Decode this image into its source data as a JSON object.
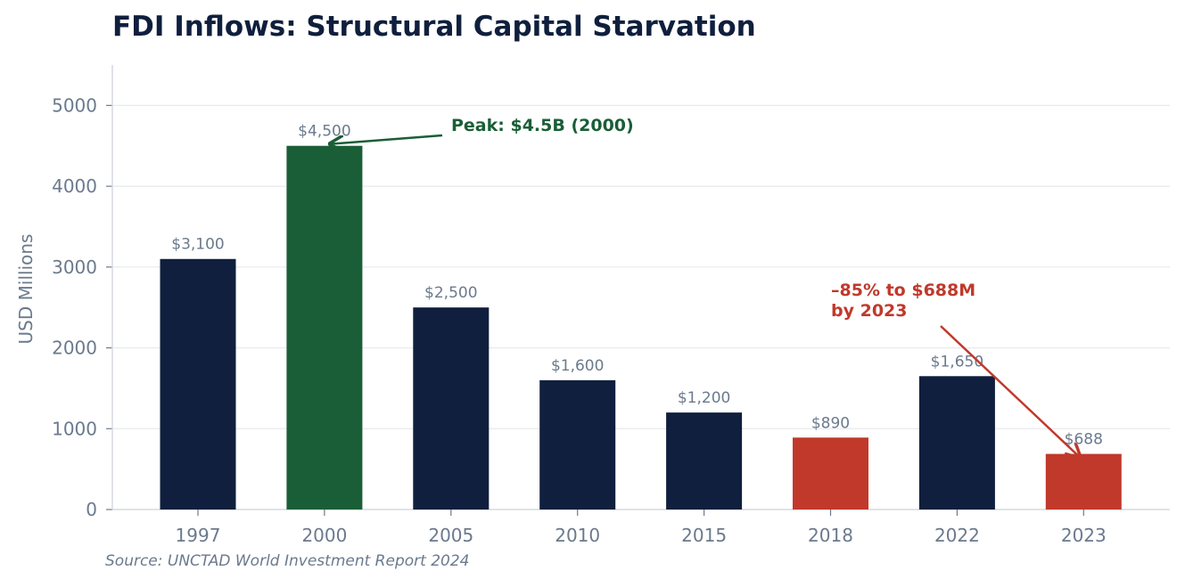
{
  "chart_data": {
    "type": "bar",
    "title": "FDI Inflows: Structural Capital Starvation",
    "ylabel": "USD Millions",
    "xlabel": "",
    "categories": [
      "1997",
      "2000",
      "2005",
      "2010",
      "2015",
      "2018",
      "2022",
      "2023"
    ],
    "values": [
      3100,
      4500,
      2500,
      1600,
      1200,
      890,
      1650,
      688
    ],
    "value_labels": [
      "$3,100",
      "$4,500",
      "$2,500",
      "$1,600",
      "$1,200",
      "$890",
      "$1,650",
      "$688"
    ],
    "bar_colors": [
      "#0f1f3d",
      "#1a5e37",
      "#0f1f3d",
      "#0f1f3d",
      "#0f1f3d",
      "#c0392b",
      "#0f1f3d",
      "#c0392b"
    ],
    "ylim": [
      0,
      5500
    ],
    "yticks": [
      0,
      1000,
      2000,
      3000,
      4000,
      5000
    ],
    "grid": true,
    "annotations": [
      {
        "text": "Peak: $4.5B (2000)",
        "color": "#1a5e37",
        "target": "2000"
      },
      {
        "text_lines": [
          "–85% to $688M",
          "by 2023"
        ],
        "color": "#c0392b",
        "target": "2023"
      }
    ],
    "source": "Source: UNCTAD World Investment Report 2024"
  },
  "colors": {
    "navy": "#0f1f3d",
    "green": "#1a5e37",
    "red": "#c0392b",
    "muted": "#6b7a8d",
    "grid": "#e6eaee"
  }
}
